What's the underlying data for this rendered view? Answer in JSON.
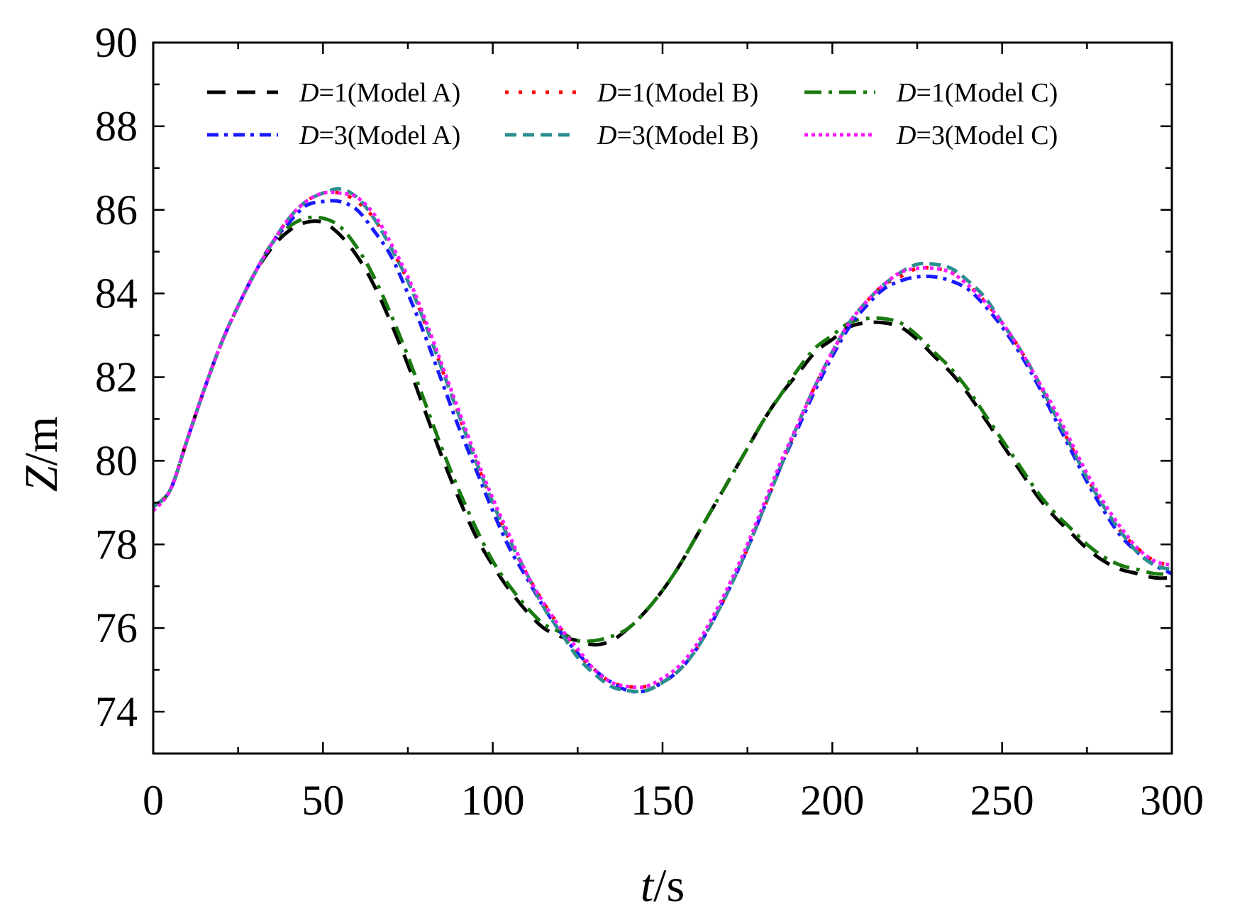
{
  "chart_data": {
    "type": "line",
    "xlabel_var": "t",
    "xlabel_unit": "/s",
    "ylabel_var": "Z",
    "ylabel_unit": "/m",
    "xlim": [
      0,
      300
    ],
    "ylim": [
      73,
      90
    ],
    "xticks": [
      0,
      50,
      100,
      150,
      200,
      250,
      300
    ],
    "yticks": [
      74,
      76,
      78,
      80,
      82,
      84,
      86,
      88,
      90
    ],
    "legend_placement": "top-inside",
    "series": [
      {
        "name": "D=1(Model A)",
        "legend_var": "D",
        "legend_rest": "=1(Model A)",
        "color": "#000000",
        "dash": "26,16",
        "width": 5,
        "x": [
          0,
          5,
          10,
          15,
          20,
          25,
          30,
          35,
          40,
          45,
          50,
          55,
          60,
          65,
          70,
          75,
          80,
          85,
          90,
          95,
          100,
          105,
          110,
          115,
          120,
          125,
          130,
          135,
          140,
          145,
          150,
          155,
          160,
          165,
          170,
          175,
          180,
          185,
          190,
          195,
          200,
          205,
          210,
          215,
          220,
          225,
          230,
          235,
          240,
          245,
          250,
          255,
          260,
          265,
          270,
          275,
          280,
          285,
          290,
          295,
          300
        ],
        "y": [
          78.9,
          79.3,
          80.5,
          81.7,
          82.8,
          83.7,
          84.5,
          85.1,
          85.5,
          85.7,
          85.7,
          85.4,
          84.9,
          84.2,
          83.3,
          82.3,
          81.2,
          80.1,
          79.1,
          78.2,
          77.5,
          76.9,
          76.4,
          76.0,
          75.8,
          75.7,
          75.6,
          75.7,
          76.0,
          76.4,
          76.9,
          77.5,
          78.2,
          78.9,
          79.6,
          80.3,
          81.0,
          81.6,
          82.1,
          82.6,
          82.9,
          83.2,
          83.3,
          83.3,
          83.2,
          82.9,
          82.5,
          82.1,
          81.6,
          81.0,
          80.4,
          79.8,
          79.2,
          78.7,
          78.3,
          77.9,
          77.6,
          77.4,
          77.3,
          77.2,
          77.2
        ]
      },
      {
        "name": "D=1(Model B)",
        "legend_var": "D",
        "legend_rest": "=1(Model B)",
        "color": "#ff0000",
        "dash": "5,14",
        "width": 5,
        "x": [
          0,
          5,
          10,
          15,
          20,
          25,
          30,
          35,
          40,
          45,
          50,
          55,
          60,
          65,
          70,
          75,
          80,
          85,
          90,
          95,
          100,
          105,
          110,
          115,
          120,
          125,
          130,
          135,
          140,
          145,
          150,
          155,
          160,
          165,
          170,
          175,
          180,
          185,
          190,
          195,
          200,
          205,
          210,
          215,
          220,
          225,
          230,
          235,
          240,
          245,
          250,
          255,
          260,
          265,
          270,
          275,
          280,
          285,
          290,
          295,
          300
        ],
        "y": [
          78.9,
          79.3,
          80.5,
          81.7,
          82.8,
          83.7,
          84.5,
          85.2,
          85.8,
          86.2,
          86.4,
          86.4,
          86.2,
          85.8,
          85.1,
          84.3,
          83.3,
          82.2,
          81.1,
          80.0,
          79.0,
          78.1,
          77.3,
          76.6,
          76.0,
          75.4,
          75.0,
          74.7,
          74.6,
          74.6,
          74.7,
          75.0,
          75.5,
          76.2,
          77.0,
          77.9,
          78.9,
          79.9,
          80.9,
          81.8,
          82.6,
          83.3,
          83.8,
          84.2,
          84.4,
          84.6,
          84.6,
          84.5,
          84.2,
          83.8,
          83.3,
          82.7,
          82.0,
          81.2,
          80.4,
          79.6,
          78.9,
          78.3,
          77.9,
          77.6,
          77.5
        ]
      },
      {
        "name": "D=1(Model C)",
        "legend_var": "D",
        "legend_rest": "=1(Model C)",
        "color": "#1a7a10",
        "dash": "24,10,5,10",
        "width": 5,
        "x": [
          0,
          5,
          10,
          15,
          20,
          25,
          30,
          35,
          40,
          45,
          50,
          55,
          60,
          65,
          70,
          75,
          80,
          85,
          90,
          95,
          100,
          105,
          110,
          115,
          120,
          125,
          130,
          135,
          140,
          145,
          150,
          155,
          160,
          165,
          170,
          175,
          180,
          185,
          190,
          195,
          200,
          205,
          210,
          215,
          220,
          225,
          230,
          235,
          240,
          245,
          250,
          255,
          260,
          265,
          270,
          275,
          280,
          285,
          290,
          295,
          300
        ],
        "y": [
          78.9,
          79.3,
          80.5,
          81.7,
          82.8,
          83.7,
          84.5,
          85.2,
          85.6,
          85.8,
          85.8,
          85.6,
          85.1,
          84.4,
          83.5,
          82.5,
          81.4,
          80.3,
          79.3,
          78.4,
          77.6,
          77.0,
          76.5,
          76.1,
          75.9,
          75.7,
          75.7,
          75.8,
          76.0,
          76.4,
          76.9,
          77.5,
          78.2,
          78.9,
          79.6,
          80.3,
          81.0,
          81.6,
          82.2,
          82.7,
          83.0,
          83.3,
          83.4,
          83.4,
          83.3,
          83.0,
          82.6,
          82.2,
          81.7,
          81.1,
          80.5,
          79.9,
          79.3,
          78.8,
          78.4,
          78.0,
          77.7,
          77.5,
          77.4,
          77.3,
          77.3
        ]
      },
      {
        "name": "D=3(Model A)",
        "legend_var": "D",
        "legend_rest": "=3(Model A)",
        "color": "#1a1aff",
        "dash": "16,8,5,8",
        "width": 5,
        "x": [
          0,
          5,
          10,
          15,
          20,
          25,
          30,
          35,
          40,
          45,
          50,
          55,
          60,
          65,
          70,
          75,
          80,
          85,
          90,
          95,
          100,
          105,
          110,
          115,
          120,
          125,
          130,
          135,
          140,
          145,
          150,
          155,
          160,
          165,
          170,
          175,
          180,
          185,
          190,
          195,
          200,
          205,
          210,
          215,
          220,
          225,
          230,
          235,
          240,
          245,
          250,
          255,
          260,
          265,
          270,
          275,
          280,
          285,
          290,
          295,
          300
        ],
        "y": [
          78.9,
          79.3,
          80.5,
          81.7,
          82.8,
          83.7,
          84.5,
          85.2,
          85.7,
          86.1,
          86.2,
          86.2,
          86.0,
          85.5,
          84.9,
          84.0,
          83.0,
          81.9,
          80.8,
          79.8,
          78.8,
          77.9,
          77.2,
          76.5,
          75.9,
          75.4,
          75.0,
          74.7,
          74.5,
          74.5,
          74.7,
          75.0,
          75.5,
          76.2,
          77.0,
          77.9,
          78.9,
          79.9,
          80.8,
          81.7,
          82.5,
          83.2,
          83.7,
          84.1,
          84.3,
          84.4,
          84.4,
          84.3,
          84.1,
          83.7,
          83.2,
          82.6,
          81.9,
          81.1,
          80.3,
          79.5,
          78.8,
          78.2,
          77.8,
          77.5,
          77.3
        ]
      },
      {
        "name": "D=3(Model B)",
        "legend_var": "D",
        "legend_rest": "=3(Model B)",
        "color": "#2a8f8f",
        "dash": "16,9",
        "width": 5,
        "x": [
          0,
          5,
          10,
          15,
          20,
          25,
          30,
          35,
          40,
          45,
          50,
          55,
          60,
          65,
          70,
          75,
          80,
          85,
          90,
          95,
          100,
          105,
          110,
          115,
          120,
          125,
          130,
          135,
          140,
          145,
          150,
          155,
          160,
          165,
          170,
          175,
          180,
          185,
          190,
          195,
          200,
          205,
          210,
          215,
          220,
          225,
          230,
          235,
          240,
          245,
          250,
          255,
          260,
          265,
          270,
          275,
          280,
          285,
          290,
          295,
          300
        ],
        "y": [
          78.9,
          79.3,
          80.5,
          81.7,
          82.8,
          83.7,
          84.5,
          85.2,
          85.8,
          86.2,
          86.4,
          86.5,
          86.3,
          85.8,
          85.1,
          84.3,
          83.3,
          82.2,
          81.1,
          80.0,
          79.0,
          78.1,
          77.3,
          76.5,
          75.9,
          75.3,
          74.9,
          74.6,
          74.5,
          74.5,
          74.7,
          75.0,
          75.5,
          76.2,
          77.0,
          77.9,
          78.9,
          79.9,
          80.9,
          81.8,
          82.6,
          83.3,
          83.8,
          84.2,
          84.5,
          84.7,
          84.7,
          84.6,
          84.3,
          83.9,
          83.3,
          82.7,
          82.0,
          81.2,
          80.4,
          79.6,
          78.9,
          78.3,
          77.8,
          77.5,
          77.4
        ]
      },
      {
        "name": "D=3(Model C)",
        "legend_var": "D",
        "legend_rest": "=3(Model C)",
        "color": "#ff1aff",
        "dash": "5,5",
        "width": 5,
        "x": [
          0,
          5,
          10,
          15,
          20,
          25,
          30,
          35,
          40,
          45,
          50,
          55,
          60,
          65,
          70,
          75,
          80,
          85,
          90,
          95,
          100,
          105,
          110,
          115,
          120,
          125,
          130,
          135,
          140,
          145,
          150,
          155,
          160,
          165,
          170,
          175,
          180,
          185,
          190,
          195,
          200,
          205,
          210,
          215,
          220,
          225,
          230,
          235,
          240,
          245,
          250,
          255,
          260,
          265,
          270,
          275,
          280,
          285,
          290,
          295,
          300
        ],
        "y": [
          78.8,
          79.3,
          80.5,
          81.7,
          82.8,
          83.7,
          84.5,
          85.2,
          85.8,
          86.2,
          86.4,
          86.4,
          86.3,
          85.9,
          85.2,
          84.4,
          83.4,
          82.3,
          81.2,
          80.1,
          79.1,
          78.2,
          77.3,
          76.6,
          76.0,
          75.5,
          75.0,
          74.7,
          74.6,
          74.6,
          74.8,
          75.1,
          75.6,
          76.3,
          77.1,
          78.0,
          79.0,
          80.0,
          80.9,
          81.8,
          82.6,
          83.3,
          83.8,
          84.2,
          84.5,
          84.6,
          84.6,
          84.5,
          84.2,
          83.8,
          83.3,
          82.7,
          82.0,
          81.3,
          80.5,
          79.7,
          79.0,
          78.4,
          77.9,
          77.6,
          77.5
        ]
      }
    ]
  }
}
